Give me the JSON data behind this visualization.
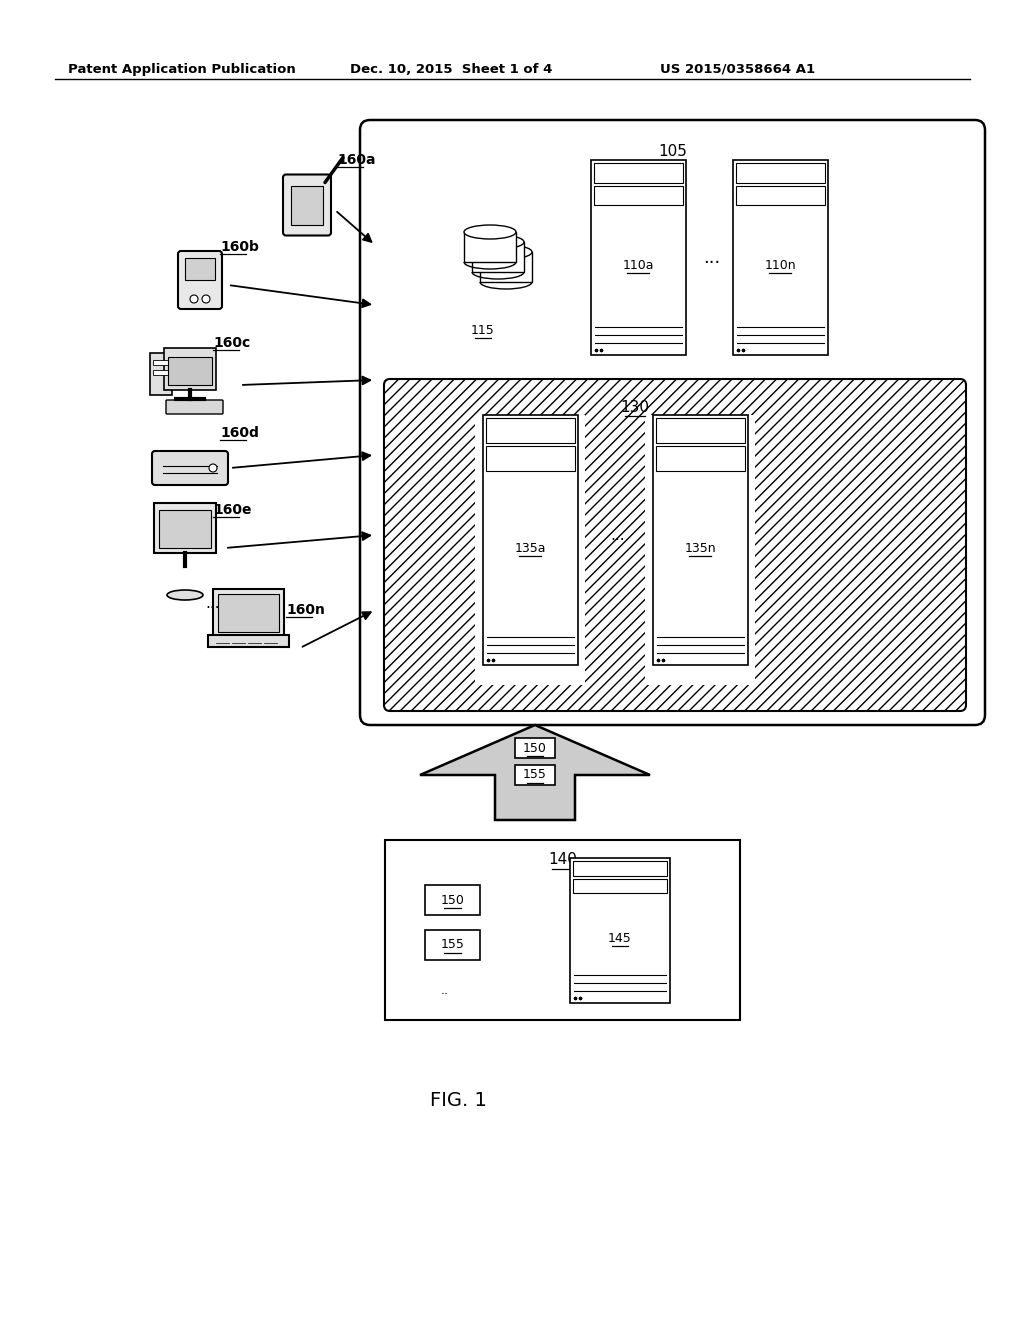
{
  "header_left": "Patent Application Publication",
  "header_mid": "Dec. 10, 2015  Sheet 1 of 4",
  "header_right": "US 2015/0358664 A1",
  "fig_label": "FIG. 1",
  "bg_color": "#ffffff",
  "box_105_label": "105",
  "box_130_label": "130",
  "box_140_label": "140",
  "label_115": "115",
  "label_110a": "110a",
  "label_110n": "110n",
  "label_135a": "135a",
  "label_135n": "135n",
  "label_145": "145",
  "label_150": "150",
  "label_155": "155",
  "label_160a": "160a",
  "label_160b": "160b",
  "label_160c": "160c",
  "label_160d": "160d",
  "label_160e": "160e",
  "label_160n": "160n",
  "dots": "...",
  "dots_small": "..."
}
